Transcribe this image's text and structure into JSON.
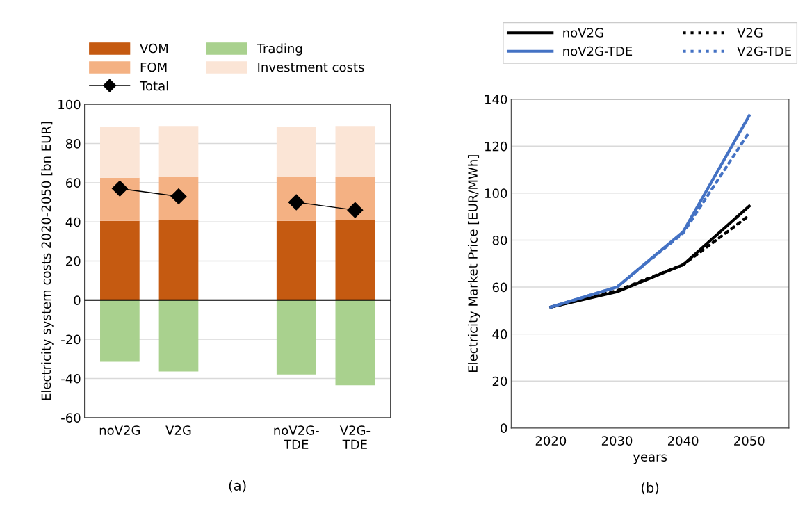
{
  "chart_data": [
    {
      "type": "bar",
      "stacked": true,
      "ylabel": "Electricity system costs 2020-2050 [bn EUR]",
      "categories": [
        "noV2G",
        "V2G",
        null,
        "noV2G-TDE",
        "V2G-TDE"
      ],
      "ylim": [
        -60,
        100
      ],
      "yticks": [
        -60,
        -40,
        -20,
        0,
        20,
        40,
        60,
        80,
        100
      ],
      "grid": "y",
      "legend": "top left",
      "series": [
        {
          "name": "VOM",
          "color": "#c55a11",
          "values": [
            40.5,
            41,
            null,
            40.5,
            41
          ]
        },
        {
          "name": "FOM",
          "color": "#f4b183",
          "values": [
            22,
            22,
            null,
            22.5,
            22
          ]
        },
        {
          "name": "Investment costs",
          "color": "#fbe5d6",
          "values": [
            26,
            26,
            null,
            25.5,
            26
          ]
        },
        {
          "name": "Trading",
          "color": "#a9d18e",
          "values": [
            -31.5,
            -36.5,
            null,
            -38,
            -43.5
          ]
        },
        {
          "name": "Total",
          "type": "line",
          "color": "#000000",
          "marker": "diamond",
          "values": [
            57,
            53,
            null,
            50,
            46
          ]
        }
      ],
      "ref_lines": [
        {
          "axis": "y",
          "value": 0,
          "color": "#000000"
        }
      ],
      "annotations": [
        "(a)"
      ]
    },
    {
      "type": "line",
      "xlabel": "years",
      "ylabel": "Electricity Market Price [EUR/MWh]",
      "categories": [
        "2020",
        "2030",
        "2040",
        "2050"
      ],
      "ylim": [
        0,
        140
      ],
      "yticks": [
        0,
        20,
        40,
        60,
        80,
        100,
        120,
        140
      ],
      "grid": "y",
      "legend": "top",
      "series": [
        {
          "name": "noV2G",
          "color": "#000000",
          "line_style": "solid",
          "values": [
            51.5,
            58,
            69.5,
            94.5
          ]
        },
        {
          "name": "V2G",
          "color": "#000000",
          "line_style": "dotted",
          "values": [
            51.5,
            58.5,
            69.5,
            90.5
          ]
        },
        {
          "name": "noV2G-TDE",
          "color": "#4472c4",
          "line_style": "solid",
          "values": [
            51.5,
            60,
            83.5,
            133
          ]
        },
        {
          "name": "V2G-TDE",
          "color": "#4472c4",
          "line_style": "dotted",
          "values": [
            51.5,
            60,
            83,
            126
          ]
        }
      ],
      "annotations": [
        "(b)"
      ]
    }
  ]
}
